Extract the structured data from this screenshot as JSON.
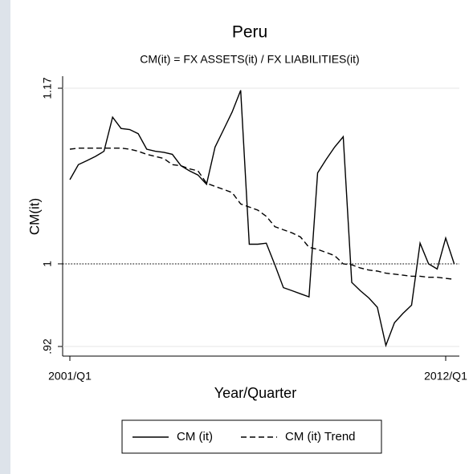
{
  "chart_data": {
    "type": "line",
    "title": "Peru",
    "subtitle": "CM(it) = FX ASSETS(it) / FX LIABILITIES(it)",
    "y_label": "CM(it)",
    "x_label": "Year/Quarter",
    "categories": [
      "2001/Q1",
      null,
      null,
      null,
      null,
      null,
      null,
      null,
      null,
      null,
      null,
      null,
      null,
      null,
      null,
      null,
      null,
      null,
      null,
      null,
      null,
      null,
      null,
      null,
      null,
      null,
      null,
      null,
      null,
      null,
      null,
      null,
      null,
      null,
      null,
      null,
      null,
      null,
      null,
      null,
      null,
      null,
      null,
      null,
      "2012/Q1",
      null
    ],
    "series": [
      {
        "name": "CM (it)",
        "color": "#000000",
        "dash": "solid",
        "values": [
          1.0815,
          1.096,
          1.1,
          1.104,
          1.109,
          1.142,
          1.131,
          1.13,
          1.126,
          1.111,
          1.109,
          1.108,
          1.106,
          1.095,
          1.09,
          1.086,
          1.077,
          1.113,
          1.13,
          1.147,
          1.168,
          1.019,
          1.019,
          1.02,
          0.999,
          0.977,
          0.974,
          0.971,
          0.968,
          1.088,
          1.101,
          1.113,
          1.123,
          0.982,
          0.974,
          0.967,
          0.958,
          0.921,
          0.943,
          0.952,
          0.96,
          1.02,
          1.0,
          0.995,
          1.025,
          1.0
        ]
      },
      {
        "name": "CM (it) Trend",
        "color": "#000000",
        "dash": "dashed",
        "values": [
          1.111,
          1.112,
          1.112,
          1.112,
          1.112,
          1.112,
          1.112,
          1.111,
          1.109,
          1.106,
          1.104,
          1.102,
          1.096,
          1.095,
          1.092,
          1.09,
          1.078,
          1.075,
          1.072,
          1.069,
          1.058,
          1.055,
          1.052,
          1.046,
          1.036,
          1.033,
          1.03,
          1.026,
          1.016,
          1.014,
          1.011,
          1.008,
          1.0,
          0.999,
          0.996,
          0.994,
          0.993,
          0.991,
          0.99,
          0.989,
          0.988,
          0.988,
          0.987,
          0.987,
          0.986,
          0.985
        ]
      }
    ],
    "ylim": [
      0.92,
      1.17
    ],
    "yticks": [
      {
        "value": 0.92,
        "label": ".92"
      },
      1,
      1.17
    ],
    "reference_line": 1,
    "grid": true,
    "legend": "bottom"
  }
}
